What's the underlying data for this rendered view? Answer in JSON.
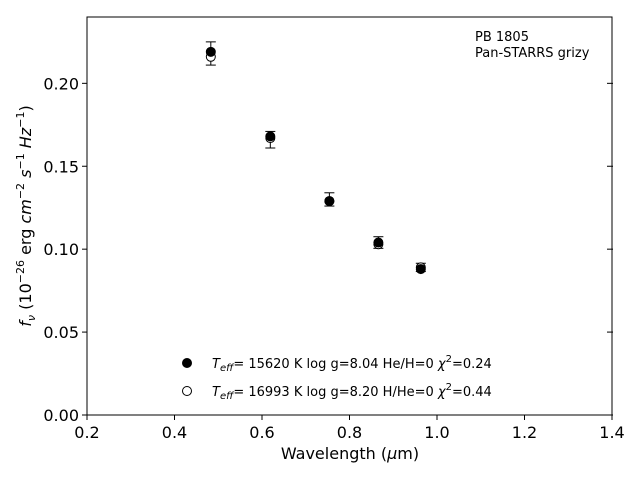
{
  "chart_data": {
    "type": "scatter",
    "title": "",
    "xlabel": {
      "main": "Wavelength (",
      "unit_greek": "μ",
      "unit_rest": "m)"
    },
    "ylabel": {
      "f": "f",
      "nu": "ν",
      "open": " (10",
      "exp1": "−26",
      "mid": " erg ",
      "cm": "cm",
      "exp2": "−2",
      "s": "s",
      "exp3": "−1",
      "hz": "Hz",
      "exp4": "−1",
      "close": ")"
    },
    "xlim": [
      0.2,
      1.4
    ],
    "ylim": [
      0.0,
      0.24
    ],
    "xticks": [
      0.2,
      0.4,
      0.6,
      0.8,
      1.0,
      1.2,
      1.4
    ],
    "xtick_labels": [
      "0.2",
      "0.4",
      "0.6",
      "0.8",
      "1.0",
      "1.2",
      "1.4"
    ],
    "yticks": [
      0.0,
      0.05,
      0.1,
      0.15,
      0.2
    ],
    "ytick_labels": [
      "0.00",
      "0.05",
      "0.10",
      "0.15",
      "0.20"
    ],
    "grid": false,
    "annotations": [
      "PB 1805",
      "Pan-STARRS grizy"
    ],
    "observed": {
      "x": [
        0.483,
        0.619,
        0.754,
        0.866,
        0.963
      ],
      "y": [
        0.218,
        0.166,
        0.13,
        0.104,
        0.089
      ],
      "yerr": [
        0.007,
        0.005,
        0.004,
        0.0035,
        0.0025
      ]
    },
    "series": [
      {
        "name": {
          "T": "T",
          "sub": "eff",
          "rest": "= 15620 K  log g=8.04  He/H=0  ",
          "chi": "χ",
          "sup": "2",
          "end": "=0.24"
        },
        "marker": "filled",
        "x": [
          0.483,
          0.619,
          0.754,
          0.866,
          0.963
        ],
        "y": [
          0.219,
          0.168,
          0.129,
          0.104,
          0.088
        ]
      },
      {
        "name": {
          "T": "T",
          "sub": "eff",
          "rest": "= 16993 K  log g=8.20  H/He=0  ",
          "chi": "χ",
          "sup": "2",
          "end": "=0.44"
        },
        "marker": "open",
        "x": [
          0.483,
          0.619,
          0.754,
          0.866,
          0.963
        ],
        "y": [
          0.216,
          0.167,
          0.129,
          0.103,
          0.089
        ]
      }
    ],
    "legend_position": "lower-center",
    "colors": {
      "marker": "#000000",
      "axes": "#000000",
      "background": "#ffffff"
    }
  }
}
